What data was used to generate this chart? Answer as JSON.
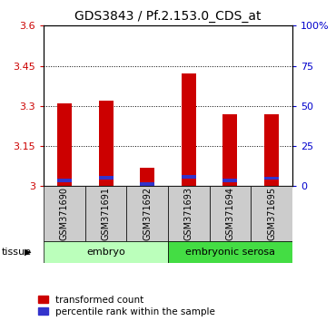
{
  "title": "GDS3843 / Pf.2.153.0_CDS_at",
  "samples": [
    "GSM371690",
    "GSM371691",
    "GSM371692",
    "GSM371693",
    "GSM371694",
    "GSM371695"
  ],
  "transformed_count": [
    3.31,
    3.32,
    3.07,
    3.42,
    3.27,
    3.27
  ],
  "percentile_rank": [
    3.5,
    5.5,
    1.5,
    6.0,
    3.5,
    5.0
  ],
  "ylim_left": [
    3.0,
    3.6
  ],
  "ylim_right": [
    0,
    100
  ],
  "yticks_left": [
    3.0,
    3.15,
    3.3,
    3.45,
    3.6
  ],
  "yticks_right": [
    0,
    25,
    50,
    75,
    100
  ],
  "ytick_labels_left": [
    "3",
    "3.15",
    "3.3",
    "3.45",
    "3.6"
  ],
  "ytick_labels_right": [
    "0",
    "25",
    "50",
    "75",
    "100%"
  ],
  "tissue_groups": [
    {
      "label": "embryo",
      "start": 0,
      "end": 2,
      "color": "#bbffbb"
    },
    {
      "label": "embryonic serosa",
      "start": 3,
      "end": 5,
      "color": "#44dd44"
    }
  ],
  "bar_width": 0.35,
  "bar_color_red": "#cc0000",
  "bar_color_blue": "#3333cc",
  "left_color": "#cc0000",
  "right_color": "#0000cc",
  "title_fontsize": 10,
  "tick_fontsize": 8,
  "legend_fontsize": 7.5,
  "sample_label_fontsize": 7,
  "tissue_label_fontsize": 8,
  "grid_color": "black",
  "background_color": "#ffffff"
}
